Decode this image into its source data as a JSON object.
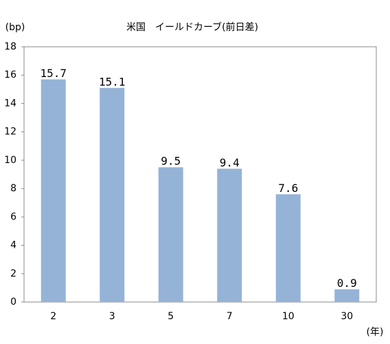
{
  "chart_data": {
    "type": "bar",
    "title": "米国　イールドカーブ(前日差)",
    "y_label": "(bp)",
    "x_label": "(年)",
    "categories": [
      "2",
      "3",
      "5",
      "7",
      "10",
      "30"
    ],
    "values": [
      15.7,
      15.1,
      9.5,
      9.4,
      7.6,
      0.9
    ],
    "color": "#95b3d7",
    "ylim": [
      0,
      18
    ],
    "yticks": [
      0,
      2,
      4,
      6,
      8,
      10,
      12,
      14,
      16,
      18
    ],
    "grid": false
  }
}
